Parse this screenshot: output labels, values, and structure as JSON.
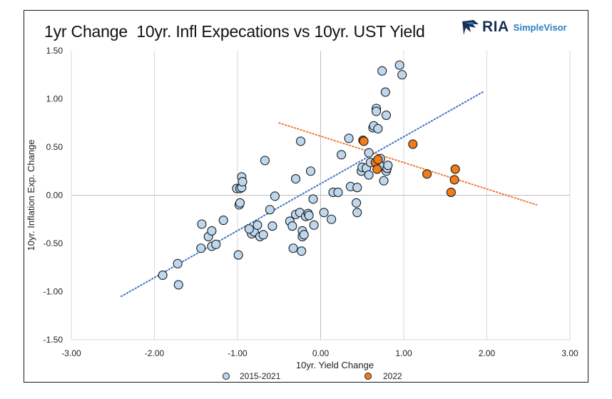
{
  "brand": {
    "logo_icon": "eagle-head-icon",
    "name": "RIA",
    "product": "SimpleVisor",
    "navy": "#1a2f55",
    "blue": "#2a7fc1"
  },
  "chart_data": {
    "type": "scatter",
    "title": "1yr Change  10yr. Infl Expecations vs 10yr. UST Yield",
    "xlabel": "10yr. Yield Change",
    "ylabel": "10yr. Inflation Exp. Change",
    "xlim": [
      -3,
      3
    ],
    "ylim": [
      -1.5,
      1.5
    ],
    "x_ticks": [
      "-3.00",
      "-2.00",
      "-1.00",
      "0.00",
      "1.00",
      "2.00",
      "3.00"
    ],
    "y_ticks": [
      "1.50",
      "1.00",
      "0.50",
      "0.00",
      "-0.50",
      "-1.00",
      "-1.50"
    ],
    "grid": "vertical",
    "legend_position": "bottom",
    "series": [
      {
        "name": "2015-2021",
        "color": "#bdd7ee",
        "trendline_color": "#4472c4",
        "trendline": [
          [
            -2.4,
            -1.05
          ],
          [
            1.95,
            1.07
          ]
        ],
        "points": [
          [
            -1.9,
            -0.83
          ],
          [
            -1.72,
            -0.71
          ],
          [
            -1.71,
            -0.93
          ],
          [
            -1.44,
            -0.55
          ],
          [
            -1.43,
            -0.3
          ],
          [
            -1.35,
            -0.43
          ],
          [
            -1.31,
            -0.53
          ],
          [
            -1.31,
            -0.37
          ],
          [
            -1.26,
            -0.51
          ],
          [
            -1.17,
            -0.26
          ],
          [
            -0.99,
            -0.62
          ],
          [
            -1.01,
            0.07
          ],
          [
            -0.97,
            0.07
          ],
          [
            -0.95,
            0.08
          ],
          [
            -0.95,
            0.19
          ],
          [
            -0.94,
            0.14
          ],
          [
            -0.98,
            -0.1
          ],
          [
            -0.97,
            -0.08
          ],
          [
            -0.67,
            0.36
          ],
          [
            -0.55,
            -0.01
          ],
          [
            -0.61,
            -0.15
          ],
          [
            -0.58,
            -0.32
          ],
          [
            -0.83,
            -0.4
          ],
          [
            -0.8,
            -0.38
          ],
          [
            -0.76,
            -0.31
          ],
          [
            -0.73,
            -0.43
          ],
          [
            -0.69,
            -0.41
          ],
          [
            -0.86,
            -0.35
          ],
          [
            -0.37,
            -0.27
          ],
          [
            -0.34,
            -0.32
          ],
          [
            -0.3,
            -0.2
          ],
          [
            -0.25,
            -0.18
          ],
          [
            -0.33,
            -0.55
          ],
          [
            -0.23,
            -0.58
          ],
          [
            -0.22,
            -0.43
          ],
          [
            -0.22,
            -0.37
          ],
          [
            -0.2,
            -0.41
          ],
          [
            -0.18,
            -0.22
          ],
          [
            -0.15,
            -0.19
          ],
          [
            -0.14,
            -0.21
          ],
          [
            -0.08,
            -0.31
          ],
          [
            -0.3,
            0.17
          ],
          [
            -0.24,
            0.56
          ],
          [
            -0.12,
            0.25
          ],
          [
            -0.09,
            -0.04
          ],
          [
            0.04,
            -0.18
          ],
          [
            0.13,
            -0.25
          ],
          [
            0.15,
            0.03
          ],
          [
            0.21,
            0.03
          ],
          [
            0.25,
            0.42
          ],
          [
            0.34,
            0.59
          ],
          [
            0.36,
            0.09
          ],
          [
            0.43,
            -0.08
          ],
          [
            0.44,
            -0.18
          ],
          [
            0.44,
            0.08
          ],
          [
            0.49,
            0.25
          ],
          [
            0.5,
            0.29
          ],
          [
            0.55,
            0.28
          ],
          [
            0.58,
            0.21
          ],
          [
            0.58,
            0.44
          ],
          [
            0.6,
            0.34
          ],
          [
            0.63,
            0.7
          ],
          [
            0.64,
            0.72
          ],
          [
            0.67,
            0.9
          ],
          [
            0.67,
            0.87
          ],
          [
            0.69,
            0.69
          ],
          [
            0.72,
            0.38
          ],
          [
            0.72,
            0.3
          ],
          [
            0.74,
            1.29
          ],
          [
            0.76,
            0.15
          ],
          [
            0.78,
            1.07
          ],
          [
            0.79,
            0.83
          ],
          [
            0.79,
            0.25
          ],
          [
            0.8,
            0.28
          ],
          [
            0.81,
            0.31
          ],
          [
            0.95,
            1.35
          ],
          [
            0.98,
            1.25
          ]
        ]
      },
      {
        "name": "2022",
        "color": "#f07d1a",
        "trendline_color": "#ed7d31",
        "trendline": [
          [
            -0.5,
            0.75
          ],
          [
            2.6,
            -0.1
          ]
        ],
        "points": [
          [
            0.51,
            0.57
          ],
          [
            0.52,
            0.56
          ],
          [
            0.66,
            0.34
          ],
          [
            0.68,
            0.27
          ],
          [
            0.69,
            0.37
          ],
          [
            1.11,
            0.53
          ],
          [
            1.28,
            0.22
          ],
          [
            1.57,
            0.03
          ],
          [
            1.61,
            0.16
          ],
          [
            1.62,
            0.27
          ]
        ]
      }
    ]
  }
}
